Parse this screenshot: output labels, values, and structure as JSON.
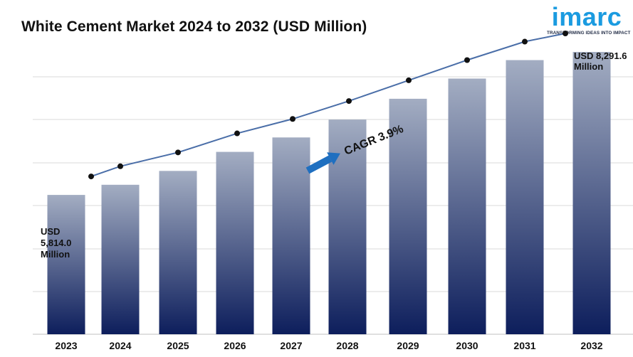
{
  "header": {
    "title": "White Cement Market 2024 to 2032 (USD Million)"
  },
  "logo": {
    "word": "imarc",
    "tagline": "TRANSFORMING IDEAS INTO IMPACT",
    "color": "#1b9be0"
  },
  "chart_data": {
    "type": "bar",
    "categories": [
      "2023",
      "2024",
      "2025",
      "2026",
      "2027",
      "2028",
      "2029",
      "2030",
      "2031",
      "2032"
    ],
    "values": [
      5814.0,
      5990,
      6230,
      6560,
      6810,
      7120,
      7480,
      7830,
      8150,
      8291.6
    ],
    "line_values": [
      5814.0,
      5990,
      6230,
      6560,
      6810,
      7120,
      7480,
      7830,
      8150,
      8291.6
    ],
    "ylim": [
      3400,
      8600
    ],
    "grid": true,
    "annotations": {
      "start": [
        "USD",
        "5,814.0",
        "Million"
      ],
      "end": [
        "USD 8,291.6",
        "Million"
      ],
      "cagr": "CAGR 3.9%"
    },
    "colors": {
      "bar_top": "#a3adc2",
      "bar_bottom": "#0d1e5c",
      "line": "#4a6ea8",
      "marker": "#111111",
      "arrow": "#1f6fc0"
    }
  }
}
